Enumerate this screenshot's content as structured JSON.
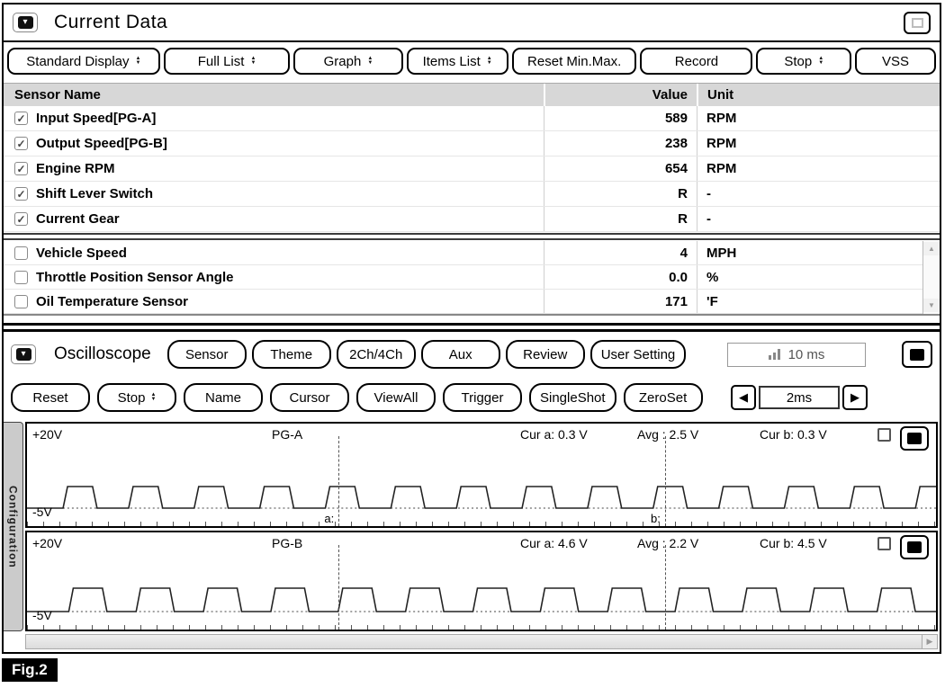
{
  "window": {
    "title": "Current Data"
  },
  "icons": {
    "menu_arrow": "▾",
    "check": "✓",
    "up": "▲",
    "down": "▼",
    "left": "◀",
    "right": "▶"
  },
  "toolbar": [
    {
      "label": "Standard Display",
      "spinner": true
    },
    {
      "label": "Full List",
      "spinner": true
    },
    {
      "label": "Graph",
      "spinner": true
    },
    {
      "label": "Items List",
      "spinner": true
    },
    {
      "label": "Reset Min.Max.",
      "spinner": false
    },
    {
      "label": "Record",
      "spinner": false
    },
    {
      "label": "Stop",
      "spinner": true
    },
    {
      "label": "VSS",
      "spinner": false
    }
  ],
  "table": {
    "headers": {
      "name": "Sensor Name",
      "value": "Value",
      "unit": "Unit"
    },
    "selected_rows": [
      {
        "checked": true,
        "name": "Input Speed[PG-A]",
        "value": "589",
        "unit": "RPM"
      },
      {
        "checked": true,
        "name": "Output Speed[PG-B]",
        "value": "238",
        "unit": "RPM"
      },
      {
        "checked": true,
        "name": "Engine RPM",
        "value": "654",
        "unit": "RPM"
      },
      {
        "checked": true,
        "name": "Shift Lever Switch",
        "value": "R",
        "unit": "-"
      },
      {
        "checked": true,
        "name": "Current Gear",
        "value": "R",
        "unit": "-"
      }
    ],
    "unselected_rows": [
      {
        "checked": false,
        "name": "Vehicle Speed",
        "value": "4",
        "unit": "MPH"
      },
      {
        "checked": false,
        "name": "Throttle Position Sensor Angle",
        "value": "0.0",
        "unit": "%"
      },
      {
        "checked": false,
        "name": "Oil Temperature Sensor",
        "value": "171",
        "unit": "'F"
      }
    ]
  },
  "oscilloscope": {
    "title": "Oscilloscope",
    "row1_buttons": [
      "Sensor",
      "Theme",
      "2Ch/4Ch",
      "Aux",
      "Review",
      "User Setting"
    ],
    "sample_rate": "10 ms",
    "row2_buttons": [
      {
        "label": "Reset",
        "spinner": false
      },
      {
        "label": "Stop",
        "spinner": true
      },
      {
        "label": "Name",
        "spinner": false
      },
      {
        "label": "Cursor",
        "spinner": false
      },
      {
        "label": "ViewAll",
        "spinner": false
      },
      {
        "label": "Trigger",
        "spinner": false
      },
      {
        "label": "SingleShot",
        "spinner": false
      },
      {
        "label": "ZeroSet",
        "spinner": false
      }
    ],
    "timebase": "2ms",
    "config_tab": "Configuration",
    "cursors": {
      "a_label": "a:",
      "b_label": "b:",
      "a_pos": 34.3,
      "b_pos": 70.2
    },
    "channels": [
      {
        "name": "PG-A",
        "top_label": "+20V",
        "bottom_label": "-5V",
        "cur_a": "Cur a: 0.3 V",
        "avg": "Avg : 2.5 V",
        "cur_b": "Cur b: 0.3 V",
        "wave": {
          "period": 73,
          "duty": 0.45,
          "amplitude": 24,
          "phase": 0,
          "edge": 5
        }
      },
      {
        "name": "PG-B",
        "top_label": "+20V",
        "bottom_label": "-5V",
        "cur_a": "Cur a: 4.6 V",
        "avg": "Avg : 2.2 V",
        "cur_b": "Cur b: 4.5 V",
        "wave": {
          "period": 75,
          "duty": 0.5,
          "amplitude": 26,
          "phase": -9,
          "edge": 5
        }
      }
    ]
  },
  "figure_label": "Fig.2"
}
